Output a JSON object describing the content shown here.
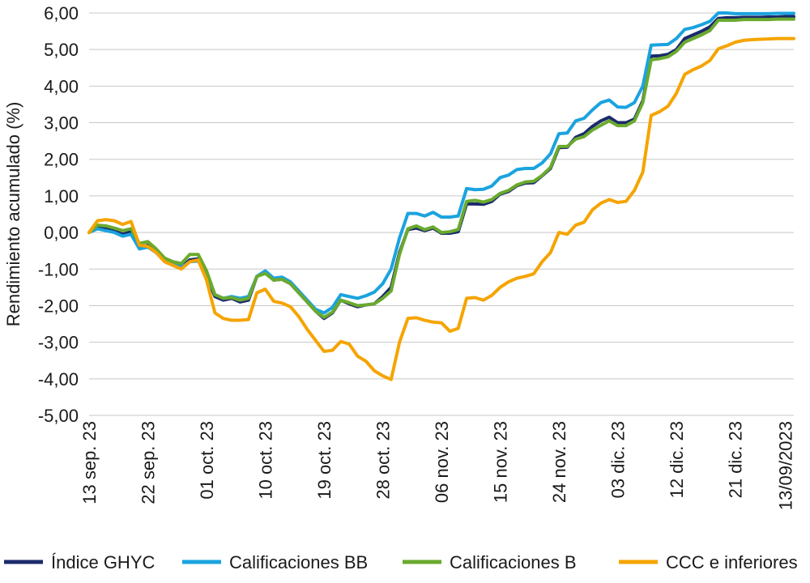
{
  "chart_data": {
    "type": "line",
    "title": "",
    "ylabel": "Rendimiento acumulado (%)",
    "xlabel": "",
    "ylim": [
      -5,
      6
    ],
    "yticks": [
      "6,00",
      "5,00",
      "4,00",
      "3,00",
      "2,00",
      "1,00",
      "0,00",
      "-1,00",
      "-2,00",
      "-3,00",
      "-4,00",
      "-5,00"
    ],
    "ytick_values": [
      6,
      5,
      4,
      3,
      2,
      1,
      0,
      -1,
      -2,
      -3,
      -4,
      -5
    ],
    "grid": "horizontal",
    "legend_position": "bottom",
    "x_labels": [
      {
        "label": "13 sep. 23",
        "index": 0
      },
      {
        "label": "22 sep. 23",
        "index": 7
      },
      {
        "label": "01 oct. 23",
        "index": 14
      },
      {
        "label": "10 oct. 23",
        "index": 21
      },
      {
        "label": "19 oct. 23",
        "index": 28
      },
      {
        "label": "28 oct. 23",
        "index": 35
      },
      {
        "label": "06 nov. 23",
        "index": 42
      },
      {
        "label": "15 nov. 23",
        "index": 49
      },
      {
        "label": "24 nov. 23",
        "index": 56
      },
      {
        "label": "03 dic. 23",
        "index": 63
      },
      {
        "label": "12 dic. 23",
        "index": 70
      },
      {
        "label": "21 dic. 23",
        "index": 77
      },
      {
        "label": "13/09/2023",
        "index": 83
      }
    ],
    "n_points": 85,
    "series": [
      {
        "name": "Índice GHYC",
        "color": "#1b2a6b",
        "values": [
          0.0,
          0.15,
          0.1,
          0.05,
          -0.05,
          0.02,
          -0.4,
          -0.35,
          -0.55,
          -0.75,
          -0.85,
          -0.95,
          -0.75,
          -0.72,
          -1.2,
          -1.75,
          -1.85,
          -1.8,
          -1.9,
          -1.85,
          -1.2,
          -1.1,
          -1.3,
          -1.28,
          -1.4,
          -1.65,
          -1.9,
          -2.15,
          -2.35,
          -2.2,
          -1.85,
          -1.95,
          -2.03,
          -1.98,
          -1.95,
          -1.75,
          -1.5,
          -0.55,
          0.08,
          0.12,
          0.05,
          0.12,
          -0.02,
          -0.02,
          0.02,
          0.78,
          0.78,
          0.77,
          0.85,
          1.05,
          1.12,
          1.28,
          1.35,
          1.36,
          1.55,
          1.75,
          2.32,
          2.33,
          2.6,
          2.7,
          2.9,
          3.05,
          3.15,
          3.0,
          3.0,
          3.1,
          3.6,
          4.82,
          4.83,
          4.87,
          5.0,
          5.3,
          5.4,
          5.5,
          5.62,
          5.85,
          5.87,
          5.87,
          5.88,
          5.88,
          5.88,
          5.89,
          5.89,
          5.9,
          5.9
        ]
      },
      {
        "name": "Calificaciones BB",
        "color": "#1aa3df",
        "values": [
          0.0,
          0.1,
          0.05,
          0.0,
          -0.1,
          -0.05,
          -0.45,
          -0.4,
          -0.55,
          -0.78,
          -0.88,
          -0.95,
          -0.8,
          -0.78,
          -1.15,
          -1.7,
          -1.8,
          -1.75,
          -1.8,
          -1.75,
          -1.2,
          -1.05,
          -1.25,
          -1.22,
          -1.35,
          -1.6,
          -1.85,
          -2.1,
          -2.2,
          -2.05,
          -1.7,
          -1.75,
          -1.8,
          -1.73,
          -1.63,
          -1.4,
          -1.0,
          -0.15,
          0.52,
          0.52,
          0.45,
          0.55,
          0.42,
          0.42,
          0.45,
          1.2,
          1.17,
          1.18,
          1.27,
          1.5,
          1.57,
          1.72,
          1.75,
          1.75,
          1.9,
          2.15,
          2.7,
          2.72,
          3.05,
          3.12,
          3.35,
          3.55,
          3.62,
          3.43,
          3.42,
          3.55,
          4.0,
          5.12,
          5.13,
          5.14,
          5.3,
          5.55,
          5.6,
          5.68,
          5.77,
          6.0,
          6.0,
          5.98,
          5.98,
          5.98,
          5.98,
          5.98,
          5.99,
          5.99,
          5.99
        ]
      },
      {
        "name": "Calificaciones B",
        "color": "#6aaa2e",
        "values": [
          0.0,
          0.2,
          0.18,
          0.12,
          0.05,
          0.1,
          -0.3,
          -0.25,
          -0.45,
          -0.7,
          -0.8,
          -0.85,
          -0.6,
          -0.6,
          -1.05,
          -1.7,
          -1.8,
          -1.78,
          -1.85,
          -1.8,
          -1.2,
          -1.12,
          -1.3,
          -1.28,
          -1.4,
          -1.65,
          -1.9,
          -2.15,
          -2.32,
          -2.18,
          -1.85,
          -1.92,
          -2.0,
          -1.98,
          -1.95,
          -1.8,
          -1.6,
          -0.6,
          0.1,
          0.18,
          0.08,
          0.15,
          0.0,
          0.02,
          0.08,
          0.85,
          0.88,
          0.83,
          0.9,
          1.07,
          1.15,
          1.3,
          1.38,
          1.4,
          1.56,
          1.78,
          2.35,
          2.35,
          2.55,
          2.62,
          2.8,
          2.93,
          3.05,
          2.92,
          2.92,
          3.05,
          3.55,
          4.72,
          4.75,
          4.8,
          4.95,
          5.2,
          5.3,
          5.4,
          5.52,
          5.8,
          5.8,
          5.8,
          5.82,
          5.82,
          5.82,
          5.82,
          5.83,
          5.83,
          5.83
        ]
      },
      {
        "name": "CCC e inferiores",
        "color": "#f5a400",
        "values": [
          0.0,
          0.32,
          0.35,
          0.32,
          0.22,
          0.3,
          -0.35,
          -0.38,
          -0.55,
          -0.8,
          -0.9,
          -1.0,
          -0.8,
          -0.75,
          -1.3,
          -2.2,
          -2.35,
          -2.4,
          -2.4,
          -2.38,
          -1.65,
          -1.55,
          -1.88,
          -1.93,
          -2.03,
          -2.3,
          -2.65,
          -2.95,
          -3.25,
          -3.22,
          -2.98,
          -3.05,
          -3.38,
          -3.52,
          -3.78,
          -3.92,
          -4.02,
          -3.0,
          -2.35,
          -2.33,
          -2.4,
          -2.45,
          -2.47,
          -2.7,
          -2.62,
          -1.8,
          -1.78,
          -1.85,
          -1.72,
          -1.5,
          -1.35,
          -1.25,
          -1.2,
          -1.13,
          -0.8,
          -0.55,
          0.0,
          -0.05,
          0.2,
          0.28,
          0.62,
          0.8,
          0.9,
          0.82,
          0.85,
          1.15,
          1.65,
          3.2,
          3.3,
          3.45,
          3.8,
          4.32,
          4.45,
          4.55,
          4.7,
          5.02,
          5.1,
          5.2,
          5.25,
          5.27,
          5.28,
          5.29,
          5.3,
          5.3,
          5.3
        ]
      }
    ]
  }
}
